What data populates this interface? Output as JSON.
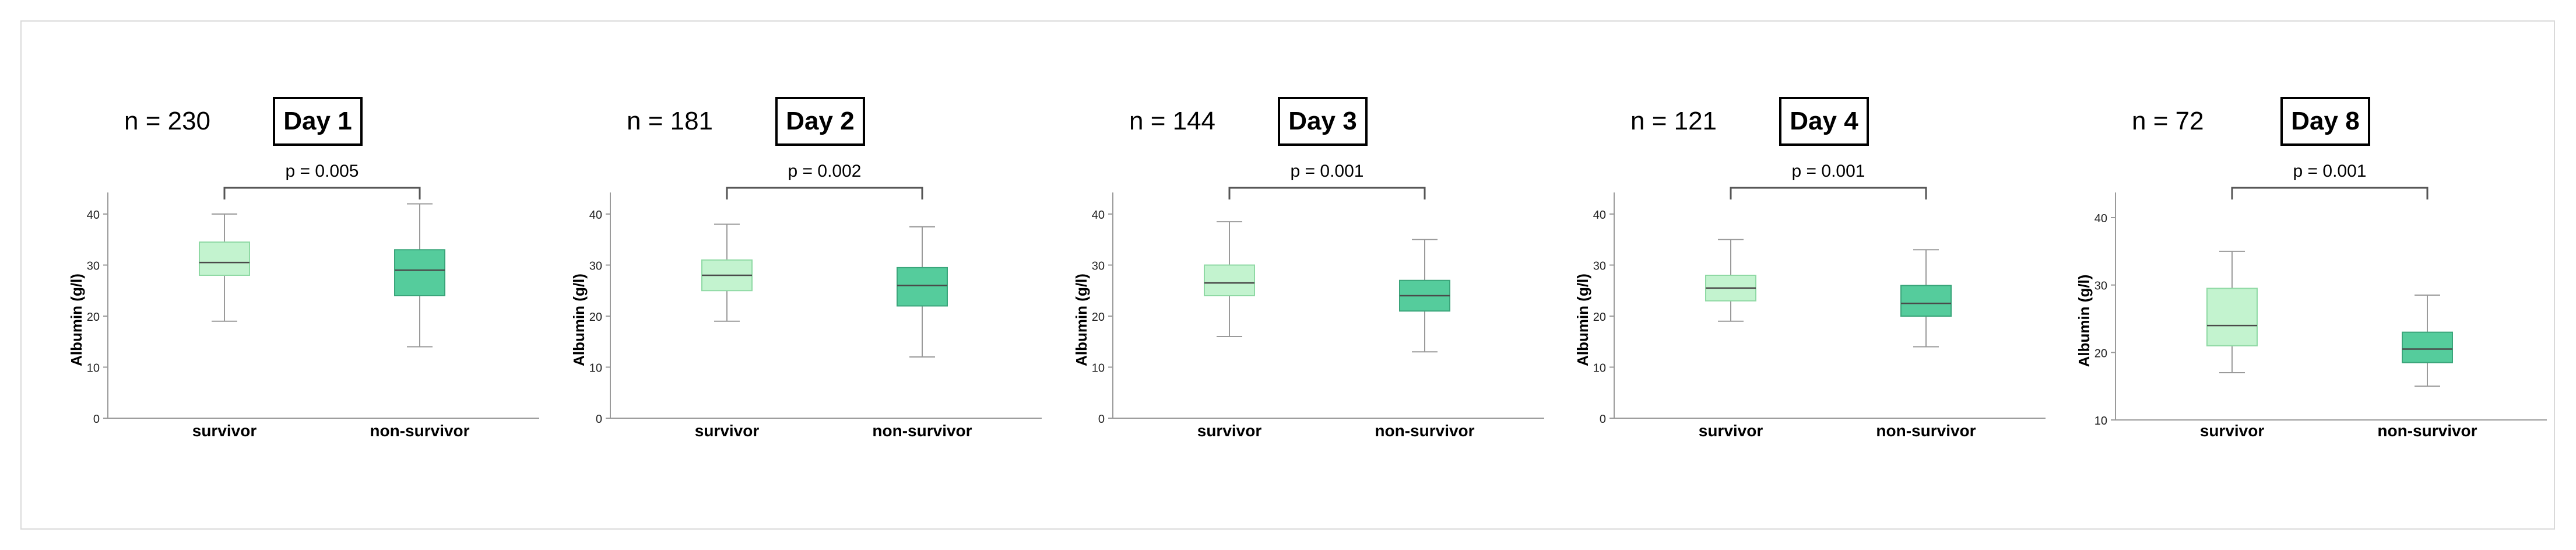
{
  "chart_data": [
    {
      "type": "box",
      "n_label": "n = 230",
      "day_label": "Day 1",
      "p_label": "p = 0.005",
      "ylabel": "Albumin (g/l)",
      "ylim": [
        0,
        45
      ],
      "yticks": [
        "0",
        "10",
        "20",
        "30",
        "40"
      ],
      "categories": [
        "survivor",
        "non-survivor"
      ],
      "boxes": [
        {
          "min": 19,
          "q1": 28,
          "median": 30.5,
          "q3": 34.5,
          "max": 40
        },
        {
          "min": 14,
          "q1": 24,
          "median": 29,
          "q3": 33,
          "max": 42
        }
      ]
    },
    {
      "type": "box",
      "n_label": "n = 181",
      "day_label": "Day 2",
      "p_label": "p = 0.002",
      "ylabel": "Albumin (g/l)",
      "ylim": [
        0,
        45
      ],
      "yticks": [
        "0",
        "10",
        "20",
        "30",
        "40"
      ],
      "categories": [
        "survivor",
        "non-survivor"
      ],
      "boxes": [
        {
          "min": 19,
          "q1": 25,
          "median": 28,
          "q3": 31,
          "max": 38
        },
        {
          "min": 12,
          "q1": 22,
          "median": 26,
          "q3": 29.5,
          "max": 37.5
        }
      ]
    },
    {
      "type": "box",
      "n_label": "n = 144",
      "day_label": "Day 3",
      "p_label": "p = 0.001",
      "ylabel": "Albumin (g/l)",
      "ylim": [
        0,
        45
      ],
      "yticks": [
        "0",
        "10",
        "20",
        "30",
        "40"
      ],
      "categories": [
        "survivor",
        "non-survivor"
      ],
      "boxes": [
        {
          "min": 16,
          "q1": 24,
          "median": 26.5,
          "q3": 30,
          "max": 38.5
        },
        {
          "min": 13,
          "q1": 21,
          "median": 24,
          "q3": 27,
          "max": 35
        }
      ]
    },
    {
      "type": "box",
      "n_label": "n = 121",
      "day_label": "Day 4",
      "p_label": "p = 0.001",
      "ylabel": "Albumin (g/l)",
      "ylim": [
        0,
        45
      ],
      "yticks": [
        "0",
        "10",
        "20",
        "30",
        "40"
      ],
      "categories": [
        "survivor",
        "non-survivor"
      ],
      "boxes": [
        {
          "min": 19,
          "q1": 23,
          "median": 25.5,
          "q3": 28,
          "max": 35
        },
        {
          "min": 14,
          "q1": 20,
          "median": 22.5,
          "q3": 26,
          "max": 33
        }
      ]
    },
    {
      "type": "box",
      "n_label": "n = 72",
      "day_label": "Day 8",
      "p_label": "p = 0.001",
      "ylabel": "Albumin (g/l)",
      "ylim": [
        10,
        42
      ],
      "yticks": [
        "10",
        "20",
        "30",
        "40"
      ],
      "categories": [
        "survivor",
        "non-survivor"
      ],
      "boxes": [
        {
          "min": 17,
          "q1": 21,
          "median": 24,
          "q3": 29.5,
          "max": 35
        },
        {
          "min": 15,
          "q1": 18.5,
          "median": 20.5,
          "q3": 23,
          "max": 28.5
        }
      ]
    }
  ],
  "colors": {
    "survivor_fill": "#c3f3cf",
    "non_survivor_fill": "#55cc9c",
    "whisker": "#9a9a9a",
    "axis": "#9a9a9a",
    "text": "#000000",
    "frame": "#d9d9d9"
  }
}
